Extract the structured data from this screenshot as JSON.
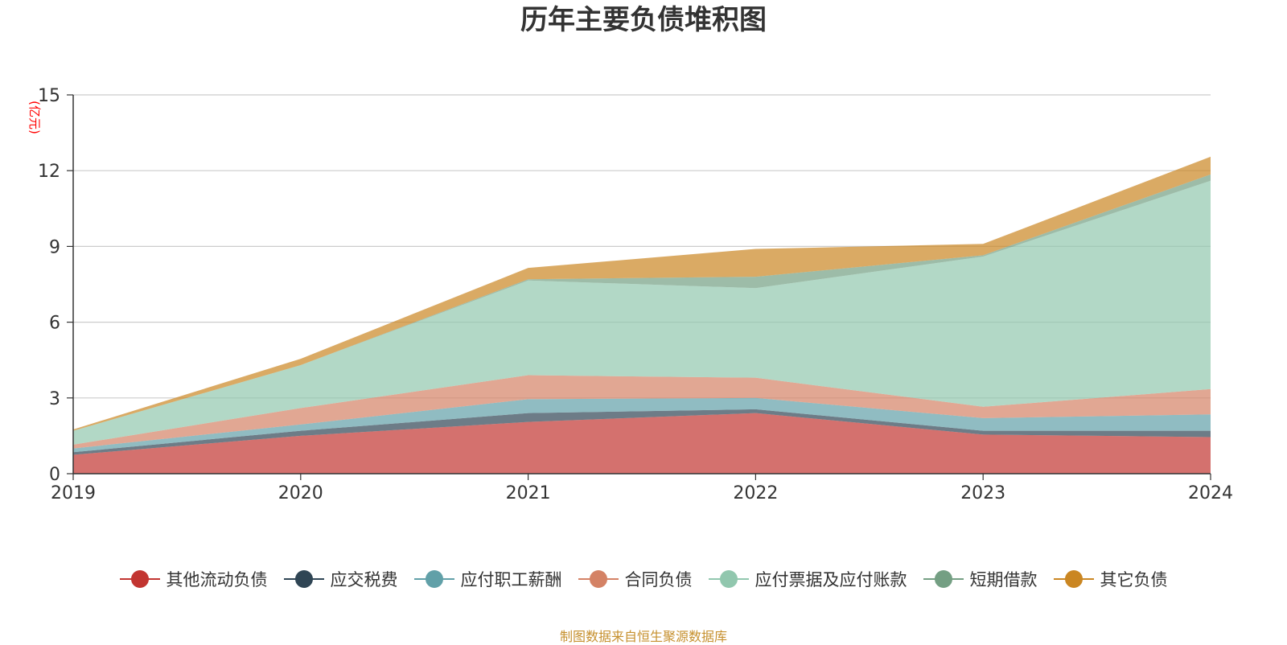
{
  "chart_data": {
    "type": "area",
    "title": "历年主要负债堆积图",
    "ylabel": "(亿元)",
    "categories": [
      "2019",
      "2020",
      "2021",
      "2022",
      "2023",
      "2024"
    ],
    "ylim": [
      0,
      15
    ],
    "yticks": [
      0,
      3,
      6,
      9,
      12,
      15
    ],
    "stacked": true,
    "grid": true,
    "legend_position": "bottom",
    "series": [
      {
        "name": "其他流动负债",
        "color": "#c23531",
        "values": [
          0.75,
          1.5,
          2.05,
          2.4,
          1.55,
          1.45
        ]
      },
      {
        "name": "应交税费",
        "color": "#2f4554",
        "values": [
          0.1,
          0.2,
          0.35,
          0.15,
          0.15,
          0.25
        ]
      },
      {
        "name": "应付职工薪酬",
        "color": "#61a0a8",
        "values": [
          0.15,
          0.25,
          0.55,
          0.45,
          0.5,
          0.65
        ]
      },
      {
        "name": "合同负债",
        "color": "#d48265",
        "values": [
          0.15,
          0.65,
          0.95,
          0.8,
          0.45,
          1.0
        ]
      },
      {
        "name": "应付票据及应付账款",
        "color": "#91c7ae",
        "values": [
          0.55,
          1.7,
          3.75,
          3.55,
          5.95,
          8.25
        ]
      },
      {
        "name": "短期借款",
        "color": "#749f83",
        "values": [
          0.0,
          0.0,
          0.05,
          0.45,
          0.05,
          0.25
        ]
      },
      {
        "name": "其它负债",
        "color": "#ca8622",
        "values": [
          0.05,
          0.25,
          0.45,
          1.1,
          0.45,
          0.7
        ]
      }
    ]
  },
  "source_note": "制图数据来自恒生聚源数据库"
}
